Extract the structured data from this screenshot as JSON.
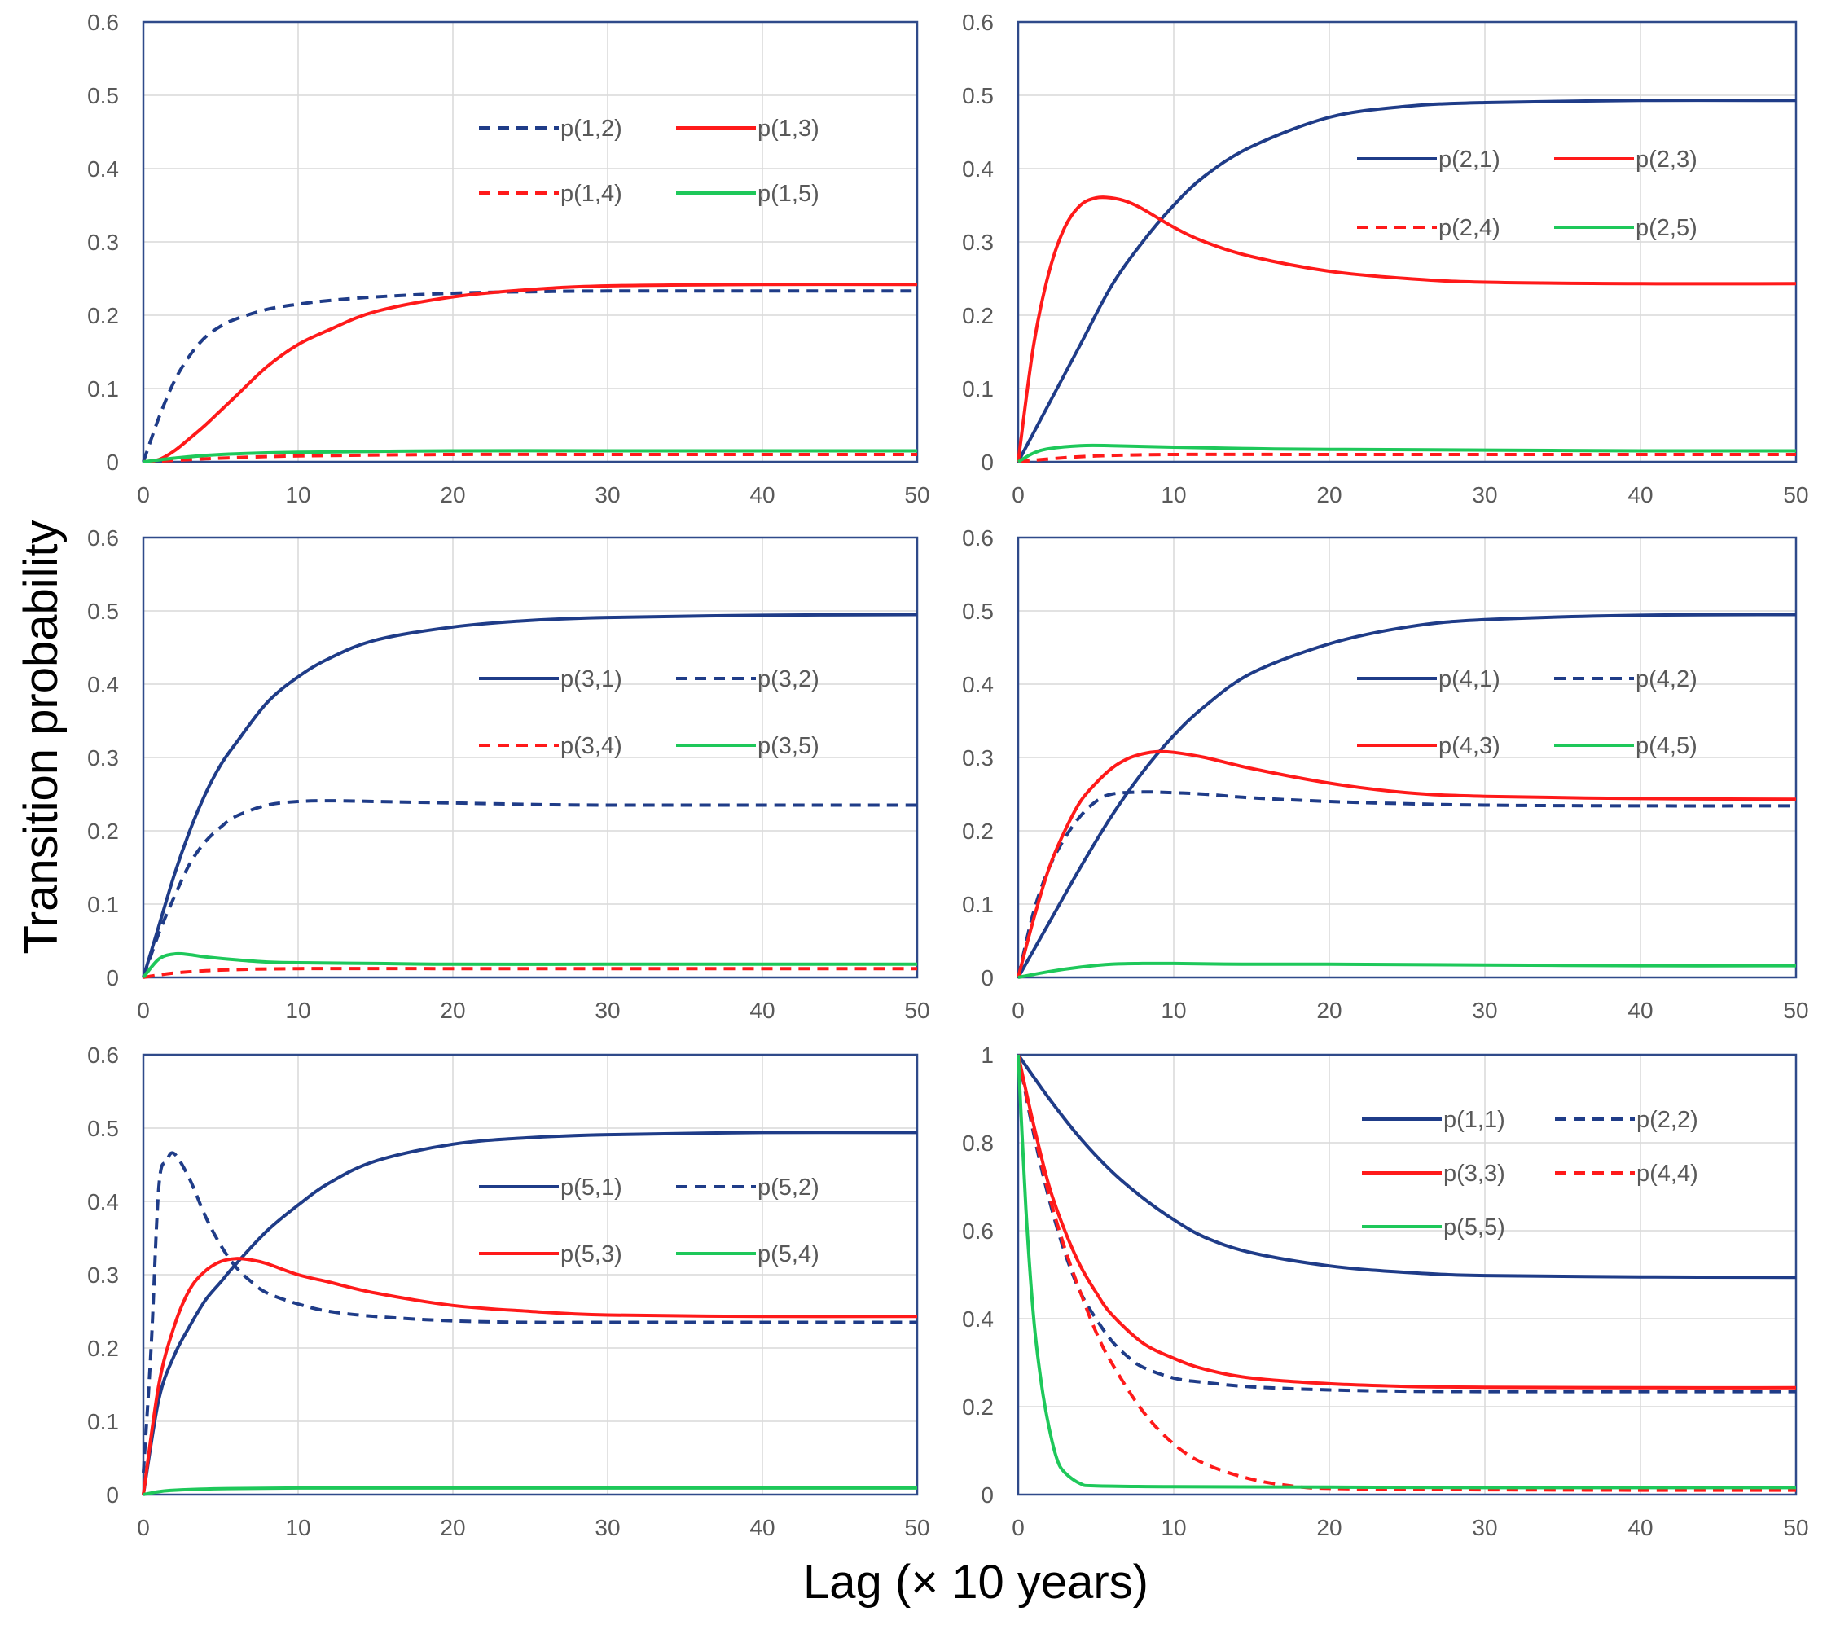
{
  "figure": {
    "ylabel": "Transition probability",
    "xlabel": "Lag (× 10 years)"
  },
  "colors": {
    "navy": "#1f3c88",
    "red": "#ff1a1a",
    "green": "#1ec85a",
    "grid": "#d9d9d9",
    "frame": "#2f4a8a",
    "tick_text": "#595959"
  },
  "chart_data": [
    {
      "type": "line",
      "panel": "top-left",
      "xlim": [
        0,
        50
      ],
      "ylim": [
        0,
        0.6
      ],
      "xticks": [
        0,
        10,
        20,
        30,
        40,
        50
      ],
      "xtick_labels": [
        "0",
        "10",
        "20",
        "30",
        "40",
        "50"
      ],
      "yticks": [
        0,
        0.1,
        0.2,
        0.3,
        0.4,
        0.5,
        0.6
      ],
      "ytick_labels": [
        "0",
        "0.1",
        "0.2",
        "0.3",
        "0.4",
        "0.5",
        "0.6"
      ],
      "legend": "upper-right",
      "series": [
        {
          "name": "p(1,2)",
          "color": "navy",
          "dashed": true,
          "x": [
            0,
            1,
            2,
            3,
            4,
            5,
            6,
            8,
            10,
            12,
            15,
            20,
            25,
            30,
            40,
            50
          ],
          "y": [
            0,
            0.06,
            0.11,
            0.145,
            0.17,
            0.185,
            0.195,
            0.208,
            0.215,
            0.22,
            0.225,
            0.23,
            0.232,
            0.233,
            0.233,
            0.233
          ]
        },
        {
          "name": "p(1,3)",
          "color": "red",
          "dashed": false,
          "x": [
            0,
            1,
            2,
            3,
            4,
            5,
            6,
            8,
            10,
            12,
            15,
            20,
            25,
            30,
            40,
            50
          ],
          "y": [
            0,
            0.003,
            0.015,
            0.032,
            0.05,
            0.07,
            0.09,
            0.13,
            0.16,
            0.18,
            0.205,
            0.225,
            0.235,
            0.24,
            0.242,
            0.242
          ]
        },
        {
          "name": "p(1,4)",
          "color": "red",
          "dashed": true,
          "x": [
            0,
            2,
            5,
            10,
            20,
            30,
            40,
            50
          ],
          "y": [
            0,
            0.002,
            0.005,
            0.008,
            0.01,
            0.01,
            0.01,
            0.01
          ]
        },
        {
          "name": "p(1,5)",
          "color": "green",
          "dashed": false,
          "x": [
            0,
            2,
            5,
            10,
            20,
            30,
            40,
            50
          ],
          "y": [
            0,
            0.005,
            0.01,
            0.013,
            0.015,
            0.015,
            0.015,
            0.015
          ]
        }
      ]
    },
    {
      "type": "line",
      "panel": "top-right",
      "xlim": [
        0,
        50
      ],
      "ylim": [
        0,
        0.6
      ],
      "xticks": [
        0,
        10,
        20,
        30,
        40,
        50
      ],
      "xtick_labels": [
        "0",
        "10",
        "20",
        "30",
        "40",
        "50"
      ],
      "yticks": [
        0,
        0.1,
        0.2,
        0.3,
        0.4,
        0.5,
        0.6
      ],
      "ytick_labels": [
        "0",
        "0.1",
        "0.2",
        "0.3",
        "0.4",
        "0.5",
        "0.6"
      ],
      "legend": "upper-right",
      "series": [
        {
          "name": "p(2,1)",
          "color": "navy",
          "dashed": false,
          "x": [
            0,
            2,
            4,
            6,
            8,
            10,
            12,
            15,
            20,
            25,
            30,
            40,
            50
          ],
          "y": [
            0,
            0.08,
            0.16,
            0.24,
            0.3,
            0.35,
            0.39,
            0.43,
            0.47,
            0.485,
            0.49,
            0.493,
            0.493
          ]
        },
        {
          "name": "p(2,3)",
          "color": "red",
          "dashed": false,
          "x": [
            0,
            1,
            2,
            3,
            4,
            5,
            6,
            7,
            8,
            10,
            12,
            15,
            20,
            25,
            30,
            40,
            50
          ],
          "y": [
            0,
            0.16,
            0.26,
            0.32,
            0.35,
            0.36,
            0.36,
            0.355,
            0.345,
            0.32,
            0.3,
            0.28,
            0.26,
            0.25,
            0.245,
            0.243,
            0.243
          ]
        },
        {
          "name": "p(2,4)",
          "color": "red",
          "dashed": true,
          "x": [
            0,
            2,
            5,
            10,
            20,
            30,
            40,
            50
          ],
          "y": [
            0,
            0.004,
            0.008,
            0.01,
            0.01,
            0.01,
            0.01,
            0.01
          ]
        },
        {
          "name": "p(2,5)",
          "color": "green",
          "dashed": false,
          "x": [
            0,
            1,
            2,
            4,
            6,
            10,
            15,
            20,
            30,
            40,
            50
          ],
          "y": [
            0,
            0.012,
            0.018,
            0.022,
            0.022,
            0.02,
            0.018,
            0.017,
            0.016,
            0.015,
            0.015
          ]
        }
      ]
    },
    {
      "type": "line",
      "panel": "middle-left",
      "xlim": [
        0,
        50
      ],
      "ylim": [
        0,
        0.6
      ],
      "xticks": [
        0,
        10,
        20,
        30,
        40,
        50
      ],
      "xtick_labels": [
        "0",
        "10",
        "20",
        "30",
        "40",
        "50"
      ],
      "yticks": [
        0,
        0.1,
        0.2,
        0.3,
        0.4,
        0.5,
        0.6
      ],
      "ytick_labels": [
        "0",
        "0.1",
        "0.2",
        "0.3",
        "0.4",
        "0.5",
        "0.6"
      ],
      "legend": "right",
      "series": [
        {
          "name": "p(3,1)",
          "color": "navy",
          "dashed": false,
          "x": [
            0,
            1,
            2,
            3,
            4,
            5,
            6,
            8,
            10,
            12,
            15,
            20,
            25,
            30,
            40,
            50
          ],
          "y": [
            0,
            0.07,
            0.14,
            0.2,
            0.25,
            0.29,
            0.32,
            0.375,
            0.41,
            0.435,
            0.46,
            0.478,
            0.487,
            0.491,
            0.494,
            0.495
          ]
        },
        {
          "name": "p(3,2)",
          "color": "navy",
          "dashed": true,
          "x": [
            0,
            1,
            2,
            3,
            4,
            5,
            6,
            8,
            10,
            12,
            15,
            20,
            25,
            30,
            40,
            50
          ],
          "y": [
            0,
            0.06,
            0.11,
            0.155,
            0.185,
            0.205,
            0.22,
            0.235,
            0.24,
            0.241,
            0.24,
            0.238,
            0.236,
            0.235,
            0.235,
            0.235
          ]
        },
        {
          "name": "p(3,4)",
          "color": "red",
          "dashed": true,
          "x": [
            0,
            2,
            5,
            10,
            20,
            30,
            40,
            50
          ],
          "y": [
            0,
            0.006,
            0.01,
            0.012,
            0.012,
            0.012,
            0.012,
            0.012
          ]
        },
        {
          "name": "p(3,5)",
          "color": "green",
          "dashed": false,
          "x": [
            0,
            1,
            2,
            3,
            4,
            6,
            8,
            10,
            15,
            20,
            30,
            40,
            50
          ],
          "y": [
            0,
            0.025,
            0.032,
            0.031,
            0.028,
            0.024,
            0.021,
            0.02,
            0.019,
            0.018,
            0.018,
            0.018,
            0.018
          ]
        }
      ]
    },
    {
      "type": "line",
      "panel": "middle-right",
      "xlim": [
        0,
        50
      ],
      "ylim": [
        0,
        0.6
      ],
      "xticks": [
        0,
        10,
        20,
        30,
        40,
        50
      ],
      "xtick_labels": [
        "0",
        "10",
        "20",
        "30",
        "40",
        "50"
      ],
      "yticks": [
        0,
        0.1,
        0.2,
        0.3,
        0.4,
        0.5,
        0.6
      ],
      "ytick_labels": [
        "0",
        "0.1",
        "0.2",
        "0.3",
        "0.4",
        "0.5",
        "0.6"
      ],
      "legend": "right",
      "series": [
        {
          "name": "p(4,1)",
          "color": "navy",
          "dashed": false,
          "x": [
            0,
            2,
            4,
            6,
            8,
            10,
            12,
            15,
            20,
            25,
            30,
            40,
            50
          ],
          "y": [
            0,
            0.075,
            0.15,
            0.22,
            0.28,
            0.33,
            0.37,
            0.415,
            0.455,
            0.478,
            0.488,
            0.494,
            0.495
          ]
        },
        {
          "name": "p(4,2)",
          "color": "navy",
          "dashed": true,
          "x": [
            0,
            1,
            2,
            3,
            4,
            5,
            6,
            8,
            10,
            12,
            15,
            20,
            25,
            30,
            40,
            50
          ],
          "y": [
            0,
            0.09,
            0.15,
            0.19,
            0.22,
            0.24,
            0.25,
            0.253,
            0.252,
            0.25,
            0.245,
            0.24,
            0.237,
            0.235,
            0.234,
            0.234
          ]
        },
        {
          "name": "p(4,3)",
          "color": "red",
          "dashed": false,
          "x": [
            0,
            1,
            2,
            3,
            4,
            5,
            6,
            7,
            8,
            9,
            10,
            12,
            15,
            20,
            25,
            30,
            40,
            50
          ],
          "y": [
            0,
            0.08,
            0.15,
            0.2,
            0.24,
            0.265,
            0.285,
            0.298,
            0.305,
            0.308,
            0.307,
            0.3,
            0.285,
            0.265,
            0.252,
            0.247,
            0.244,
            0.243
          ]
        },
        {
          "name": "p(4,5)",
          "color": "green",
          "dashed": false,
          "x": [
            0,
            2,
            4,
            6,
            8,
            10,
            15,
            20,
            30,
            40,
            50
          ],
          "y": [
            0,
            0.008,
            0.014,
            0.018,
            0.019,
            0.019,
            0.018,
            0.018,
            0.017,
            0.016,
            0.016
          ]
        }
      ]
    },
    {
      "type": "line",
      "panel": "bottom-left",
      "xlim": [
        0,
        50
      ],
      "ylim": [
        0,
        0.6
      ],
      "xticks": [
        0,
        10,
        20,
        30,
        40,
        50
      ],
      "xtick_labels": [
        "0",
        "10",
        "20",
        "30",
        "40",
        "50"
      ],
      "yticks": [
        0,
        0.1,
        0.2,
        0.3,
        0.4,
        0.5,
        0.6
      ],
      "ytick_labels": [
        "0",
        "0.1",
        "0.2",
        "0.3",
        "0.4",
        "0.5",
        "0.6"
      ],
      "legend": "right",
      "series": [
        {
          "name": "p(5,1)",
          "color": "navy",
          "dashed": false,
          "x": [
            0,
            1,
            2,
            3,
            4,
            5,
            6,
            8,
            10,
            12,
            15,
            20,
            25,
            30,
            40,
            50
          ],
          "y": [
            0,
            0.13,
            0.19,
            0.23,
            0.265,
            0.29,
            0.315,
            0.36,
            0.395,
            0.425,
            0.455,
            0.478,
            0.487,
            0.491,
            0.494,
            0.494
          ]
        },
        {
          "name": "p(5,2)",
          "color": "navy",
          "dashed": true,
          "x": [
            0,
            0.5,
            1,
            1.5,
            2,
            3,
            4,
            5,
            6,
            7,
            8,
            10,
            12,
            15,
            20,
            25,
            30,
            40,
            50
          ],
          "y": [
            0.03,
            0.2,
            0.42,
            0.455,
            0.465,
            0.43,
            0.38,
            0.34,
            0.31,
            0.29,
            0.275,
            0.26,
            0.25,
            0.243,
            0.237,
            0.235,
            0.235,
            0.235,
            0.235
          ]
        },
        {
          "name": "p(5,3)",
          "color": "red",
          "dashed": false,
          "x": [
            0,
            1,
            2,
            3,
            4,
            5,
            6,
            7,
            8,
            10,
            12,
            15,
            20,
            25,
            30,
            40,
            50
          ],
          "y": [
            0,
            0.15,
            0.23,
            0.28,
            0.305,
            0.318,
            0.322,
            0.32,
            0.315,
            0.3,
            0.29,
            0.275,
            0.258,
            0.25,
            0.245,
            0.243,
            0.243
          ]
        },
        {
          "name": "p(5,4)",
          "color": "green",
          "dashed": false,
          "x": [
            0,
            1,
            2,
            5,
            10,
            20,
            30,
            40,
            50
          ],
          "y": [
            0,
            0.004,
            0.006,
            0.008,
            0.009,
            0.009,
            0.009,
            0.009,
            0.009
          ]
        }
      ]
    },
    {
      "type": "line",
      "panel": "bottom-right",
      "xlim": [
        0,
        50
      ],
      "ylim": [
        0,
        1
      ],
      "xticks": [
        0,
        10,
        20,
        30,
        40,
        50
      ],
      "xtick_labels": [
        "0",
        "10",
        "20",
        "30",
        "40",
        "50"
      ],
      "yticks": [
        0,
        0.2,
        0.4,
        0.6,
        0.8,
        1
      ],
      "ytick_labels": [
        "0",
        "0.2",
        "0.4",
        "0.6",
        "0.8",
        "1"
      ],
      "legend": "upper-right",
      "series": [
        {
          "name": "p(1,1)",
          "color": "navy",
          "dashed": false,
          "x": [
            0,
            2,
            4,
            6,
            8,
            10,
            12,
            15,
            20,
            25,
            30,
            40,
            50
          ],
          "y": [
            1,
            0.9,
            0.81,
            0.735,
            0.675,
            0.625,
            0.585,
            0.55,
            0.52,
            0.505,
            0.498,
            0.495,
            0.494
          ]
        },
        {
          "name": "p(2,2)",
          "color": "navy",
          "dashed": true,
          "x": [
            0,
            1,
            2,
            3,
            4,
            5,
            6,
            7,
            8,
            10,
            12,
            15,
            20,
            25,
            30,
            40,
            50
          ],
          "y": [
            1,
            0.82,
            0.67,
            0.55,
            0.46,
            0.4,
            0.35,
            0.315,
            0.29,
            0.265,
            0.255,
            0.245,
            0.238,
            0.235,
            0.234,
            0.234,
            0.234
          ]
        },
        {
          "name": "p(3,3)",
          "color": "red",
          "dashed": false,
          "x": [
            0,
            1,
            2,
            3,
            4,
            5,
            6,
            8,
            10,
            12,
            15,
            20,
            25,
            30,
            40,
            50
          ],
          "y": [
            1,
            0.84,
            0.7,
            0.6,
            0.52,
            0.46,
            0.41,
            0.345,
            0.31,
            0.285,
            0.265,
            0.252,
            0.246,
            0.244,
            0.243,
            0.243
          ]
        },
        {
          "name": "p(4,4)",
          "color": "red",
          "dashed": true,
          "x": [
            0,
            1,
            2,
            3,
            4,
            5,
            6,
            8,
            10,
            12,
            15,
            18,
            20,
            25,
            30,
            40,
            50
          ],
          "y": [
            1,
            0.83,
            0.68,
            0.56,
            0.46,
            0.37,
            0.3,
            0.19,
            0.115,
            0.07,
            0.035,
            0.018,
            0.014,
            0.012,
            0.011,
            0.01,
            0.01
          ]
        },
        {
          "name": "p(5,5)",
          "color": "green",
          "dashed": false,
          "x": [
            0,
            0.5,
            1,
            1.5,
            2,
            2.5,
            3,
            4,
            5,
            10,
            20,
            30,
            40,
            50
          ],
          "y": [
            1,
            0.65,
            0.4,
            0.25,
            0.15,
            0.08,
            0.05,
            0.025,
            0.02,
            0.018,
            0.017,
            0.016,
            0.016,
            0.016
          ]
        }
      ]
    }
  ]
}
